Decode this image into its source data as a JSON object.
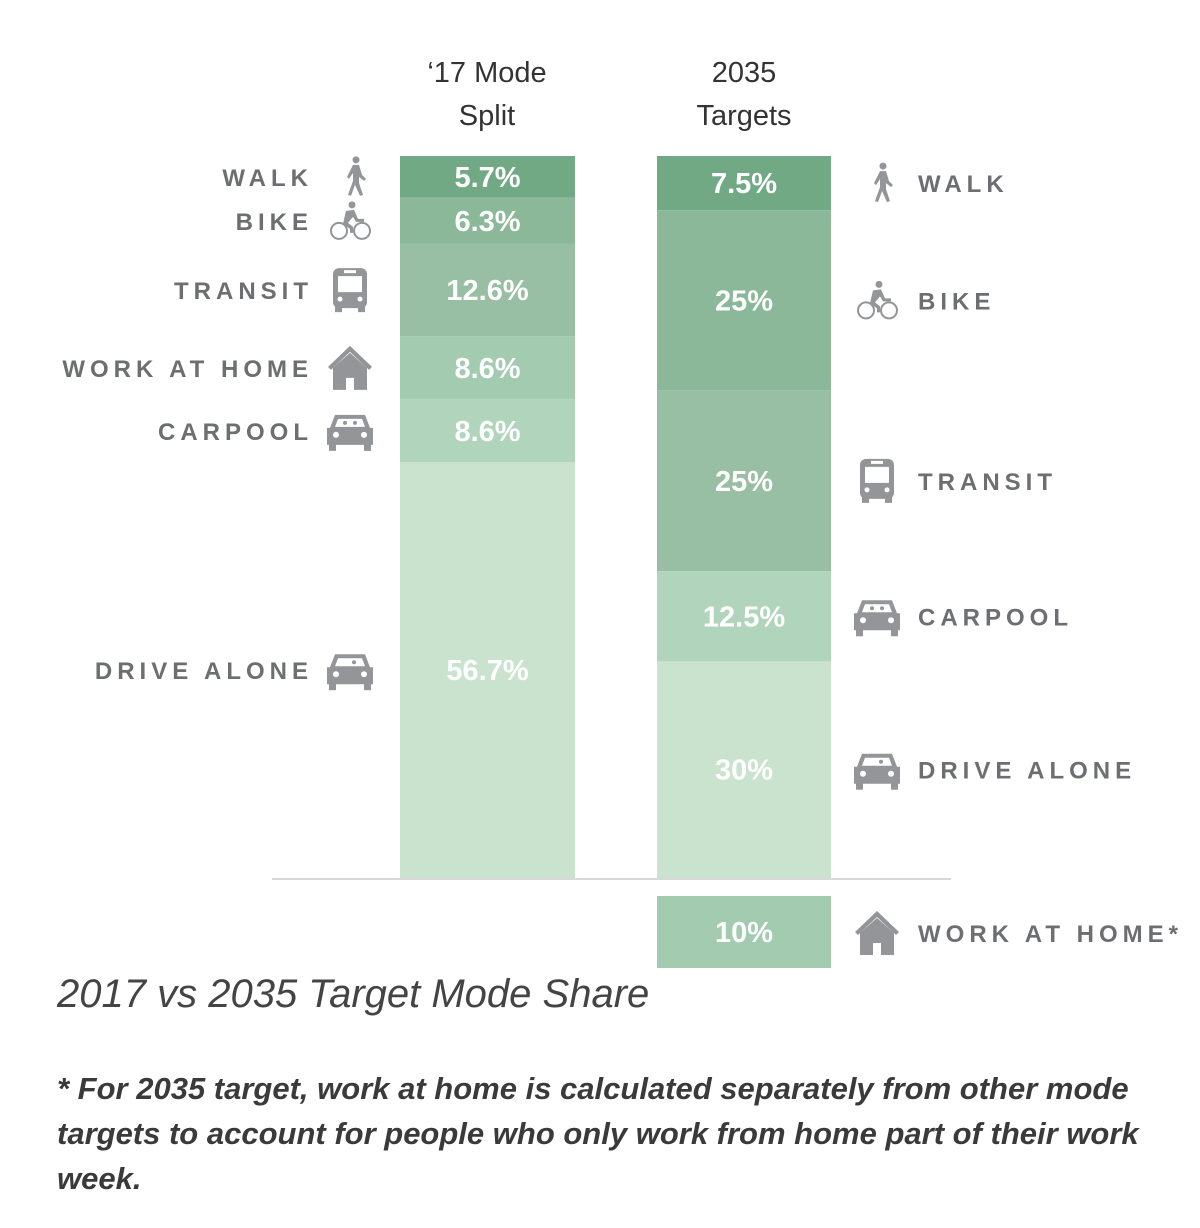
{
  "chart_data": {
    "type": "stacked-bar",
    "caption": "2017 vs 2035 Target Mode Share",
    "footnote": "* For 2035 target, work at home is calculated separately from other mode targets to account for people who only work from home part of their work week.",
    "bars": [
      {
        "title_line1": "‘17 Mode",
        "title_line2": "Split",
        "segments": [
          {
            "label": "WALK",
            "icon": "walk-icon",
            "value": 5.7,
            "text": "5.7%",
            "color": "#72a985"
          },
          {
            "label": "BIKE",
            "icon": "bike-icon",
            "value": 6.3,
            "text": "6.3%",
            "color": "#8ab899"
          },
          {
            "label": "TRANSIT",
            "icon": "bus-icon",
            "value": 12.6,
            "text": "12.6%",
            "color": "#98bfa3"
          },
          {
            "label": "WORK AT HOME",
            "icon": "house-icon",
            "value": 8.6,
            "text": "8.6%",
            "color": "#a2cbb0"
          },
          {
            "label": "CARPOOL",
            "icon": "carpool-icon",
            "value": 8.6,
            "text": "8.6%",
            "color": "#b1d4bc"
          },
          {
            "label": "DRIVE ALONE",
            "icon": "car-icon",
            "value": 56.7,
            "text": "56.7%",
            "color": "#c9e3cf"
          }
        ]
      },
      {
        "title_line1": "2035",
        "title_line2": "Targets",
        "segments": [
          {
            "label": "WALK",
            "icon": "walk-icon",
            "value": 7.5,
            "text": "7.5%",
            "color": "#72a985"
          },
          {
            "label": "BIKE",
            "icon": "bike-icon",
            "value": 25,
            "text": "25%",
            "color": "#8ab899"
          },
          {
            "label": "TRANSIT",
            "icon": "bus-icon",
            "value": 25,
            "text": "25%",
            "color": "#98bfa3"
          },
          {
            "label": "CARPOOL",
            "icon": "carpool-icon",
            "value": 12.5,
            "text": "12.5%",
            "color": "#b1d4bc"
          },
          {
            "label": "DRIVE ALONE",
            "icon": "car-icon",
            "value": 30,
            "text": "30%",
            "color": "#c9e3cf"
          }
        ],
        "separate": {
          "label": "WORK AT HOME*",
          "icon": "house-icon",
          "value": 10,
          "text": "10%",
          "color": "#a2cbb0"
        }
      }
    ],
    "label_color": "#6d6e71",
    "icon_color": "#939598"
  }
}
